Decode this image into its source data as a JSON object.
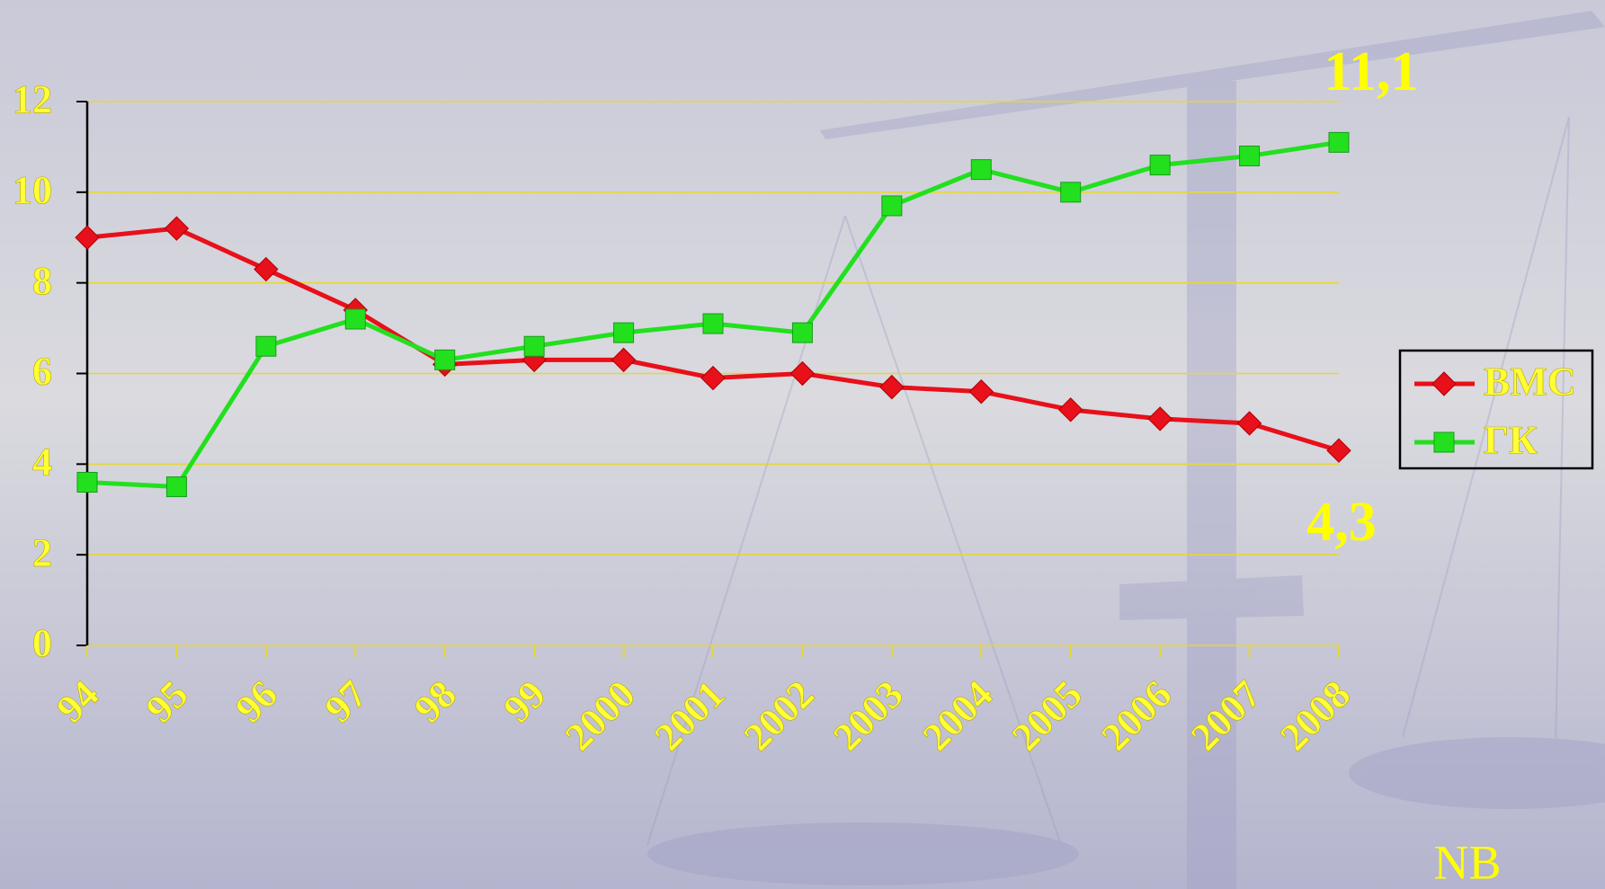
{
  "chart_data": {
    "type": "line",
    "categories": [
      "94",
      "95",
      "96",
      "97",
      "98",
      "99",
      "2000",
      "2001",
      "2002",
      "2003",
      "2004",
      "2005",
      "2006",
      "2007",
      "2008"
    ],
    "series": [
      {
        "name": "ВМС",
        "color": "#e8101a",
        "marker": "diamond",
        "values": [
          9.0,
          9.2,
          8.3,
          7.4,
          6.2,
          6.3,
          6.3,
          5.9,
          6.0,
          5.7,
          5.6,
          5.2,
          5.0,
          4.9,
          4.3
        ]
      },
      {
        "name": "ГК",
        "color": "#22e01e",
        "marker": "square",
        "values": [
          3.6,
          3.5,
          6.6,
          7.2,
          6.3,
          6.6,
          6.9,
          7.1,
          6.9,
          9.7,
          10.5,
          10.0,
          10.6,
          10.8,
          11.1
        ]
      }
    ],
    "ylim": [
      0,
      12
    ],
    "yticks": [
      0,
      2,
      4,
      6,
      8,
      10,
      12
    ],
    "grid": true,
    "legend": "right",
    "annotations": [
      "11,1",
      "4,3",
      "NB"
    ]
  }
}
